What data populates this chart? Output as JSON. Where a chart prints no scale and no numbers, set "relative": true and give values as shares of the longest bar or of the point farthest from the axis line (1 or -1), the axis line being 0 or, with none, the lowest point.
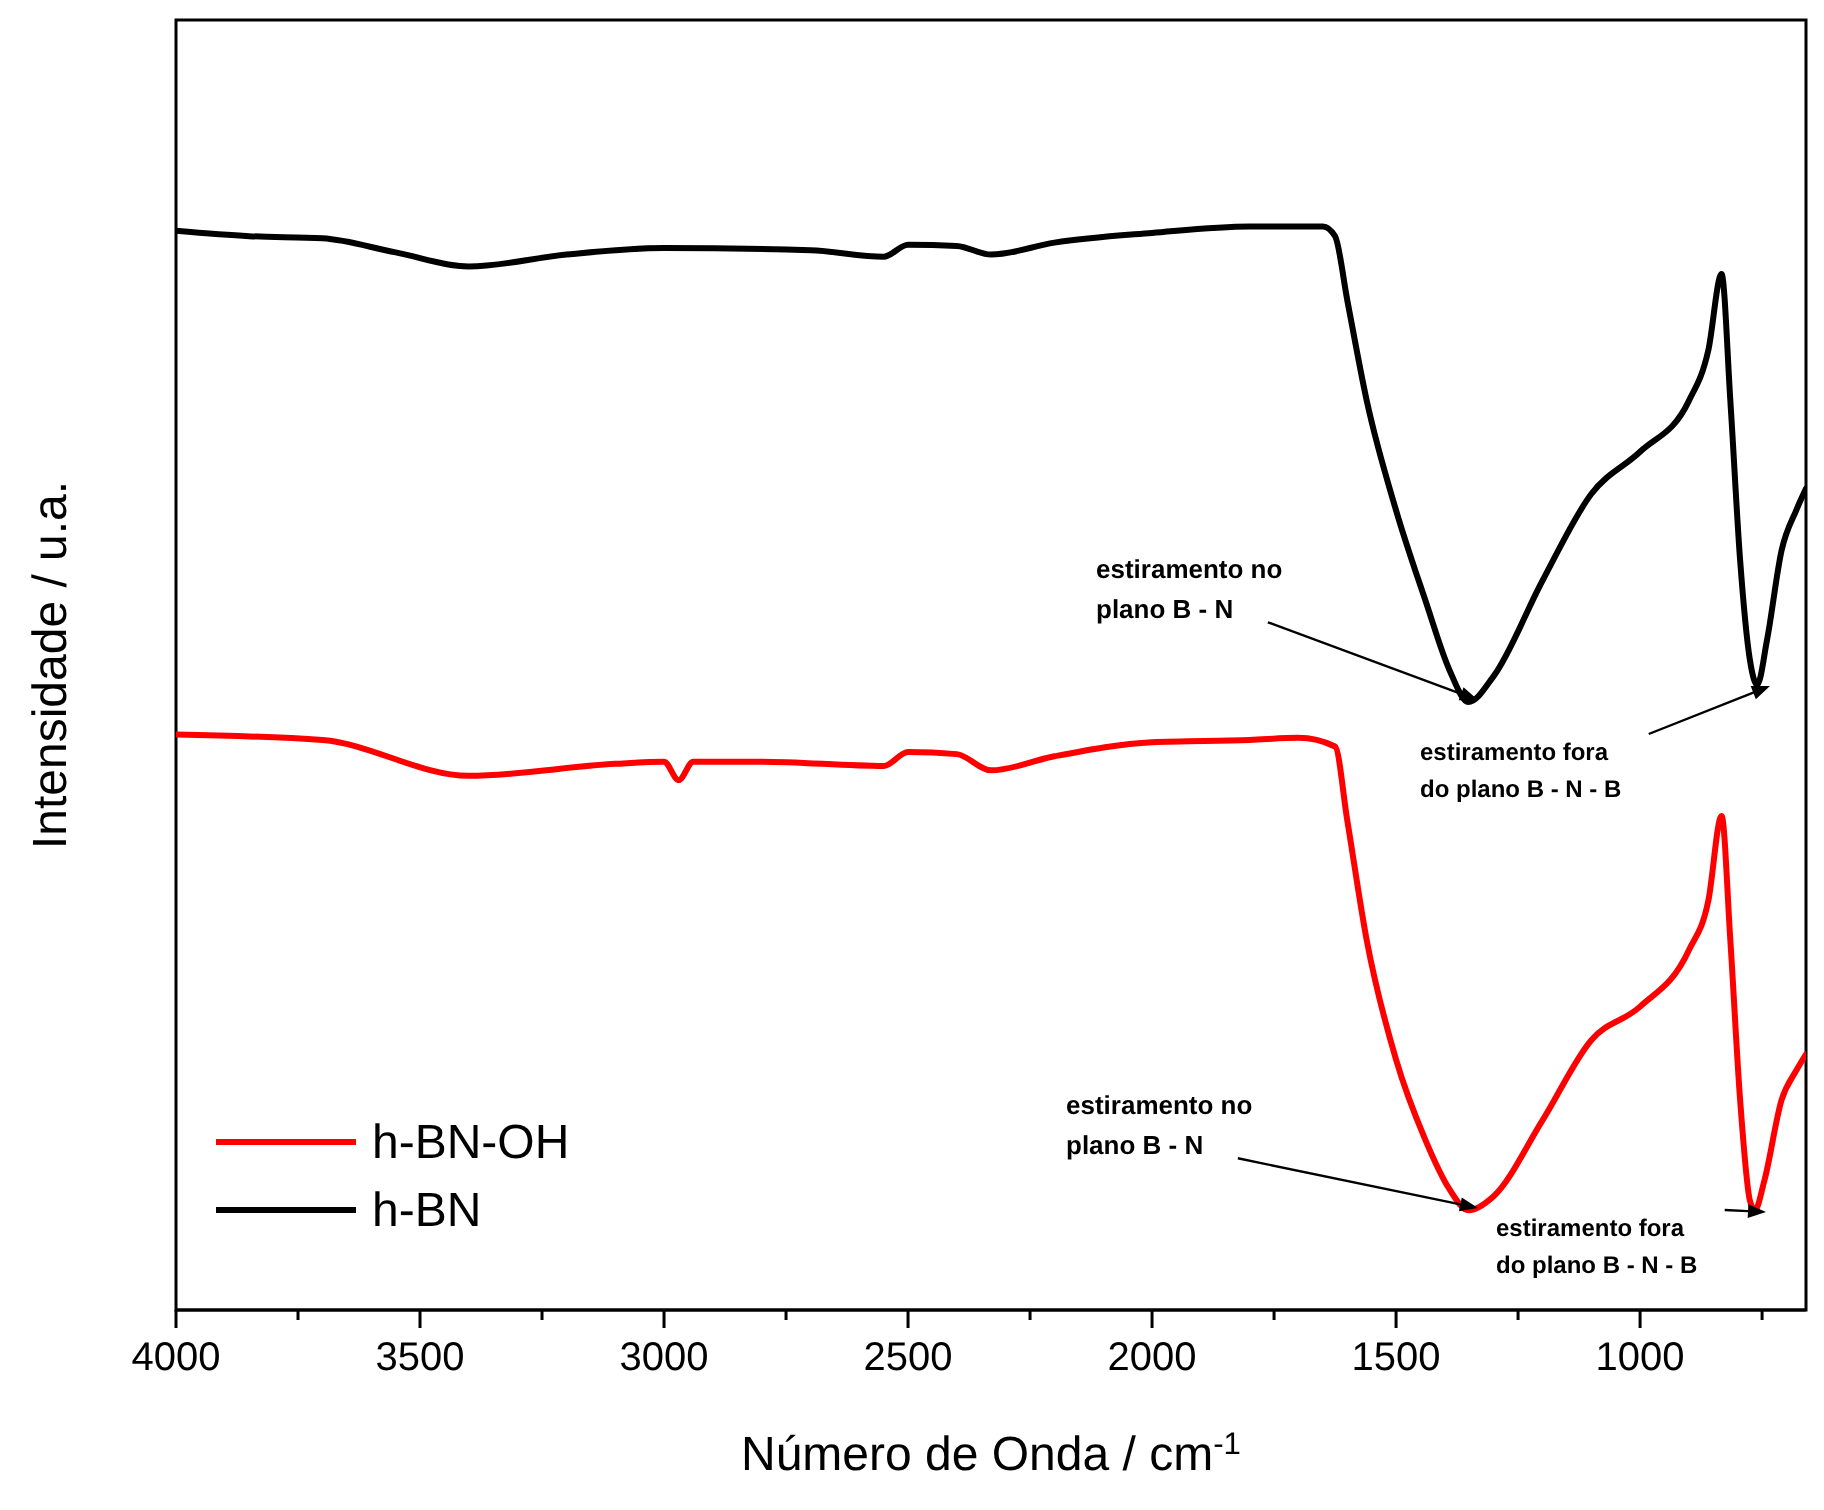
{
  "chart_data": {
    "type": "line",
    "xlabel": "Número de Onda / cm$^{-1}$",
    "ylabel": "Intensidade / u.a.",
    "relative": true,
    "xlim": [
      4000,
      660
    ],
    "xticks": [
      4000,
      {
        "value": 3750,
        "label": null
      },
      3500,
      {
        "value": 3250,
        "label": null
      },
      3000,
      {
        "value": 2750,
        "label": null
      },
      2500,
      {
        "value": 2250,
        "label": null
      },
      2000,
      {
        "value": 1750,
        "label": null
      },
      1500,
      {
        "value": 1250,
        "label": null
      },
      1000,
      {
        "value": 750,
        "label": null
      }
    ],
    "legend": "bottom left",
    "grid": false,
    "line_style": "solid",
    "marker": "none",
    "series": [
      {
        "name": "h-BN-OH",
        "color": "#ff0000",
        "x": [
          4000,
          3700,
          3400,
          3100,
          3000,
          2970,
          2940,
          2800,
          2550,
          2500,
          2400,
          2330,
          2200,
          2000,
          1800,
          1700,
          1625,
          1600,
          1560,
          1500,
          1440,
          1390,
          1352,
          1300,
          1200,
          1100,
          1000,
          900,
          860,
          833,
          815,
          795,
          775,
          765,
          745,
          710,
          680,
          660
        ],
        "values": [
          0.531,
          0.526,
          0.493,
          0.504,
          0.506,
          0.489,
          0.506,
          0.506,
          0.502,
          0.515,
          0.513,
          0.498,
          0.511,
          0.524,
          0.526,
          0.528,
          0.52,
          0.452,
          0.341,
          0.231,
          0.157,
          0.111,
          0.092,
          0.105,
          0.175,
          0.249,
          0.28,
          0.332,
          0.378,
          0.456,
          0.341,
          0.194,
          0.101,
          0.092,
          0.12,
          0.194,
          0.221,
          0.236
        ]
      },
      {
        "name": "h-BN",
        "color": "#000000",
        "x": [
          4000,
          3850,
          3700,
          3550,
          3400,
          3200,
          3000,
          2700,
          2550,
          2500,
          2400,
          2330,
          2200,
          2000,
          1800,
          1650,
          1625,
          1600,
          1560,
          1500,
          1440,
          1390,
          1352,
          1300,
          1200,
          1100,
          1000,
          900,
          860,
          833,
          815,
          795,
          775,
          760,
          740,
          710,
          680,
          660
        ],
        "values": [
          0.996,
          0.991,
          0.989,
          0.976,
          0.963,
          0.974,
          0.98,
          0.978,
          0.972,
          0.983,
          0.982,
          0.974,
          0.985,
          0.994,
          1,
          1,
          0.991,
          0.932,
          0.839,
          0.738,
          0.655,
          0.59,
          0.561,
          0.585,
          0.673,
          0.753,
          0.792,
          0.839,
          0.886,
          0.956,
          0.839,
          0.692,
          0.6,
          0.577,
          0.618,
          0.701,
          0.738,
          0.758
        ]
      }
    ],
    "annotations": [
      "estiramento no\nplano B - N",
      "estiramento fora\ndo plano B - N - B",
      "estiramento no\nplano B - N",
      "estiramento fora\ndo plano B - N - B"
    ]
  }
}
